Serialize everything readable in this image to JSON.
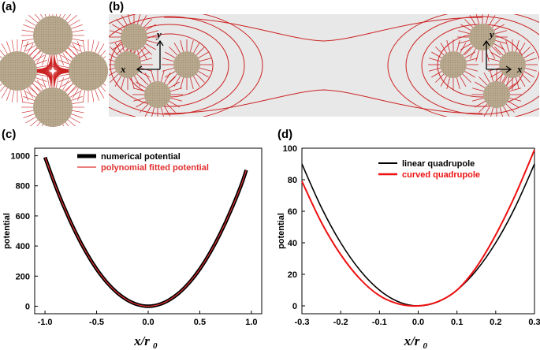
{
  "panels": {
    "a": {
      "label": "(a)"
    },
    "b": {
      "label": "(b)",
      "axis_x": "x",
      "axis_y": "y"
    },
    "c": {
      "label": "(c)"
    },
    "d": {
      "label": "(d)"
    }
  },
  "colors": {
    "rod": "#b5a68c",
    "field": "#cc2222",
    "bg_b": "#e8e8e8"
  },
  "chart_data": [
    {
      "type": "line",
      "panel": "c",
      "xlabel": "x/r",
      "xlabel_sub": "0",
      "ylabel": "potential",
      "xlim": [
        -1.1,
        1.1
      ],
      "ylim": [
        -50,
        1050
      ],
      "xticks": [
        "-1.0",
        "-0.5",
        "0.0",
        "0.5",
        "1.0"
      ],
      "yticks": [
        "0",
        "200",
        "400",
        "600",
        "800",
        "1000"
      ],
      "legend_position": "top",
      "series": [
        {
          "name": "numerical potential",
          "color": "#000000",
          "x": [
            -1.0,
            -0.9,
            -0.8,
            -0.7,
            -0.6,
            -0.5,
            -0.4,
            -0.3,
            -0.2,
            -0.1,
            0.0,
            0.1,
            0.2,
            0.3,
            0.4,
            0.5,
            0.6,
            0.7,
            0.8,
            0.9,
            0.95
          ],
          "values": [
            990,
            802,
            634,
            485,
            356,
            247,
            158,
            89,
            40,
            10,
            0,
            10,
            40,
            89,
            158,
            247,
            356,
            485,
            634,
            802,
            905
          ]
        },
        {
          "name": "polynomial fitted potential",
          "color": "#e03030",
          "x": [
            -1.0,
            -0.9,
            -0.8,
            -0.7,
            -0.6,
            -0.5,
            -0.4,
            -0.3,
            -0.2,
            -0.1,
            0.0,
            0.1,
            0.2,
            0.3,
            0.4,
            0.5,
            0.6,
            0.7,
            0.8,
            0.9,
            0.95
          ],
          "values": [
            990,
            802,
            634,
            485,
            356,
            247,
            158,
            89,
            40,
            10,
            0,
            10,
            40,
            89,
            158,
            247,
            356,
            485,
            634,
            802,
            905
          ]
        }
      ]
    },
    {
      "type": "line",
      "panel": "d",
      "xlabel": "x/r",
      "xlabel_sub": "0",
      "ylabel": "potential",
      "xlim": [
        -0.3,
        0.3
      ],
      "ylim": [
        -5,
        100
      ],
      "xticks": [
        "-0.3",
        "-0.2",
        "-0.1",
        "0.0",
        "0.1",
        "0.2",
        "0.3"
      ],
      "yticks": [
        "0",
        "20",
        "40",
        "60",
        "80",
        "100"
      ],
      "legend_position": "top-right",
      "series": [
        {
          "name": "linear quadrupole",
          "color": "#000000",
          "x": [
            -0.3,
            -0.25,
            -0.2,
            -0.15,
            -0.1,
            -0.05,
            0.0,
            0.05,
            0.1,
            0.15,
            0.2,
            0.25,
            0.3
          ],
          "values": [
            90,
            62.5,
            40,
            22.5,
            10,
            2.5,
            0,
            2.5,
            10,
            22.5,
            40,
            62.5,
            90
          ]
        },
        {
          "name": "curved quadrupole",
          "color": "#ee1111",
          "x": [
            -0.3,
            -0.25,
            -0.2,
            -0.15,
            -0.1,
            -0.05,
            0.0,
            0.05,
            0.1,
            0.15,
            0.2,
            0.25,
            0.3
          ],
          "values": [
            79,
            53,
            32.5,
            17,
            6.5,
            1.2,
            0,
            2.6,
            10,
            24.5,
            45,
            70,
            99
          ]
        }
      ]
    }
  ]
}
